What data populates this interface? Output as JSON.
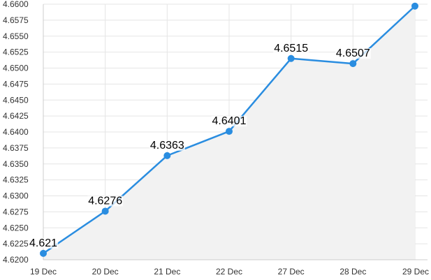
{
  "chart_data": {
    "type": "area",
    "title": "",
    "xlabel": "",
    "ylabel": "",
    "categories": [
      "19 Dec",
      "20 Dec",
      "21 Dec",
      "22 Dec",
      "27 Dec",
      "28 Dec",
      "29 Dec"
    ],
    "series": [
      {
        "values": [
          4.621,
          4.6276,
          4.6363,
          4.6401,
          4.6515,
          4.6507,
          4.6597
        ]
      }
    ],
    "data_labels": [
      "4.621",
      "4.6276",
      "4.6363",
      "4.6401",
      "4.6515",
      "4.6507",
      "4.6597"
    ],
    "ylim": [
      4.62,
      4.66
    ],
    "yticks": [
      "4.6200",
      "4.6225",
      "4.6250",
      "4.6275",
      "4.6300",
      "4.6325",
      "4.6350",
      "4.6375",
      "4.6400",
      "4.6425",
      "4.6450",
      "4.6475",
      "4.6500",
      "4.6525",
      "4.6550",
      "4.6575",
      "4.6600"
    ],
    "grid": true,
    "legend": "none",
    "colors": {
      "line": "#2a8de0",
      "marker": "#2a8de0",
      "area": "#f2f2f2",
      "grid": "#e5e5e5",
      "axis": "#cccccc"
    }
  }
}
